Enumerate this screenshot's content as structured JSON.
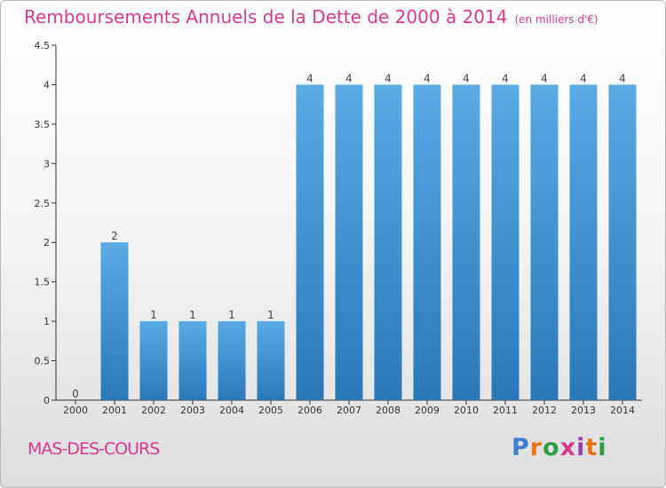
{
  "brand": {
    "name": "Proxiti",
    "letters": [
      "P",
      "r",
      "o",
      "x",
      "i",
      "t",
      "i"
    ]
  },
  "commune": "MAS-DES-COURS",
  "chart_data": {
    "type": "bar",
    "title": "Remboursements Annuels de la Dette de 2000 à 2014",
    "subtitle": "(en milliers d'€)",
    "categories": [
      "2000",
      "2001",
      "2002",
      "2003",
      "2004",
      "2005",
      "2006",
      "2007",
      "2008",
      "2009",
      "2010",
      "2011",
      "2012",
      "2013",
      "2014"
    ],
    "values": [
      0,
      2,
      1,
      1,
      1,
      1,
      4,
      4,
      4,
      4,
      4,
      4,
      4,
      4,
      4
    ],
    "value_labels": [
      "0",
      "2",
      "1",
      "1",
      "1",
      "1",
      "4",
      "4",
      "4",
      "4",
      "4",
      "4",
      "4",
      "4",
      "4"
    ],
    "y_ticks": [
      0,
      0.5,
      1,
      1.5,
      2,
      2.5,
      3,
      3.5,
      4,
      4.5
    ],
    "y_tick_labels": [
      "0",
      "0.5",
      "1",
      "1.5",
      "2",
      "2.5",
      "3",
      "3.5",
      "4",
      "4.5"
    ],
    "ylim": [
      0,
      4.5
    ],
    "xlabel": "",
    "ylabel": "",
    "grid": false,
    "legend": "none",
    "colors": {
      "bar_top": "#5aaae6",
      "bar_bottom": "#2a78b8",
      "title": "#d63a8c",
      "axis": "#333333"
    }
  }
}
